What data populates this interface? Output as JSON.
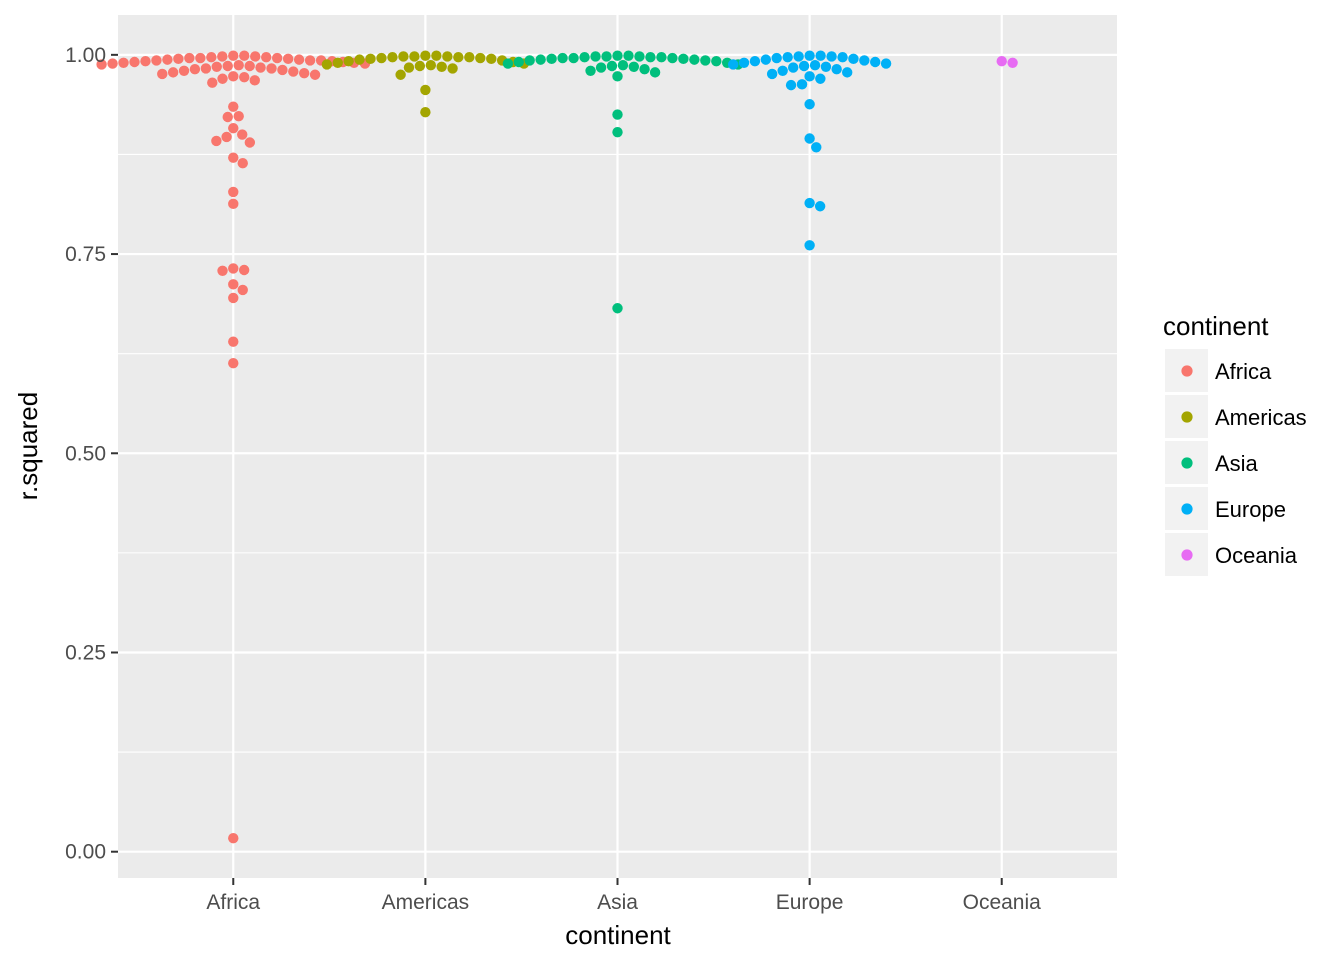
{
  "chart_data": {
    "type": "scatter",
    "subtype": "beeswarm",
    "xlabel": "continent",
    "ylabel": "r.squared",
    "ylim": [
      -0.033,
      1.05
    ],
    "yticks": [
      0.0,
      0.25,
      0.5,
      0.75,
      1.0
    ],
    "ytick_labels": [
      "0.00",
      "0.25",
      "0.50",
      "0.75",
      "1.00"
    ],
    "categories": [
      "Africa",
      "Americas",
      "Asia",
      "Europe",
      "Oceania"
    ],
    "grid": true,
    "legend": {
      "title": "continent",
      "position": "right",
      "entries": [
        {
          "label": "Africa",
          "color": "#F8766D"
        },
        {
          "label": "Americas",
          "color": "#A3A500"
        },
        {
          "label": "Asia",
          "color": "#00BF7D"
        },
        {
          "label": "Europe",
          "color": "#00B0F6"
        },
        {
          "label": "Oceania",
          "color": "#E76BF3"
        }
      ]
    },
    "series": [
      {
        "name": "Africa",
        "color": "#F8766D",
        "values": [
          0.999,
          0.998,
          0.997,
          0.996,
          0.996,
          0.995,
          0.995,
          0.994,
          0.994,
          0.993,
          0.993,
          0.992,
          0.992,
          0.991,
          0.991,
          0.99,
          0.99,
          0.989,
          0.988,
          0.987,
          0.986,
          0.985,
          0.984,
          0.983,
          0.982,
          0.981,
          0.98,
          0.979,
          0.978,
          0.977,
          0.976,
          0.975,
          0.973,
          0.972,
          0.97,
          0.968,
          0.965,
          0.998,
          0.999,
          0.997,
          0.996,
          0.993,
          0.989,
          0.986,
          0.983,
          0.935,
          0.922,
          0.923,
          0.908,
          0.9,
          0.897,
          0.892,
          0.89,
          0.871,
          0.864,
          0.828,
          0.813,
          0.732,
          0.729,
          0.73,
          0.712,
          0.705,
          0.695,
          0.64,
          0.613,
          0.017
        ]
      },
      {
        "name": "Americas",
        "color": "#A3A500",
        "values": [
          0.999,
          0.998,
          0.998,
          0.997,
          0.997,
          0.996,
          0.996,
          0.995,
          0.995,
          0.994,
          0.993,
          0.992,
          0.991,
          0.99,
          0.989,
          0.988,
          0.987,
          0.986,
          0.985,
          0.984,
          0.983,
          0.997,
          0.998,
          0.999,
          0.975,
          0.956,
          0.928
        ]
      },
      {
        "name": "Asia",
        "color": "#00BF7D",
        "values": [
          0.999,
          0.998,
          0.998,
          0.997,
          0.997,
          0.996,
          0.996,
          0.995,
          0.995,
          0.994,
          0.994,
          0.993,
          0.993,
          0.992,
          0.991,
          0.99,
          0.989,
          0.988,
          0.987,
          0.986,
          0.985,
          0.984,
          0.982,
          0.98,
          0.978,
          0.998,
          0.999,
          0.997,
          0.996,
          0.973,
          0.925,
          0.903,
          0.682
        ]
      },
      {
        "name": "Europe",
        "color": "#00B0F6",
        "values": [
          0.999,
          0.998,
          0.998,
          0.997,
          0.997,
          0.996,
          0.995,
          0.994,
          0.993,
          0.992,
          0.991,
          0.99,
          0.989,
          0.988,
          0.987,
          0.986,
          0.985,
          0.984,
          0.982,
          0.98,
          0.978,
          0.976,
          0.973,
          0.97,
          0.999,
          0.963,
          0.962,
          0.938,
          0.895,
          0.884,
          0.814,
          0.81,
          0.761
        ]
      },
      {
        "name": "Oceania",
        "color": "#E76BF3",
        "values": [
          0.992,
          0.99
        ]
      }
    ]
  }
}
